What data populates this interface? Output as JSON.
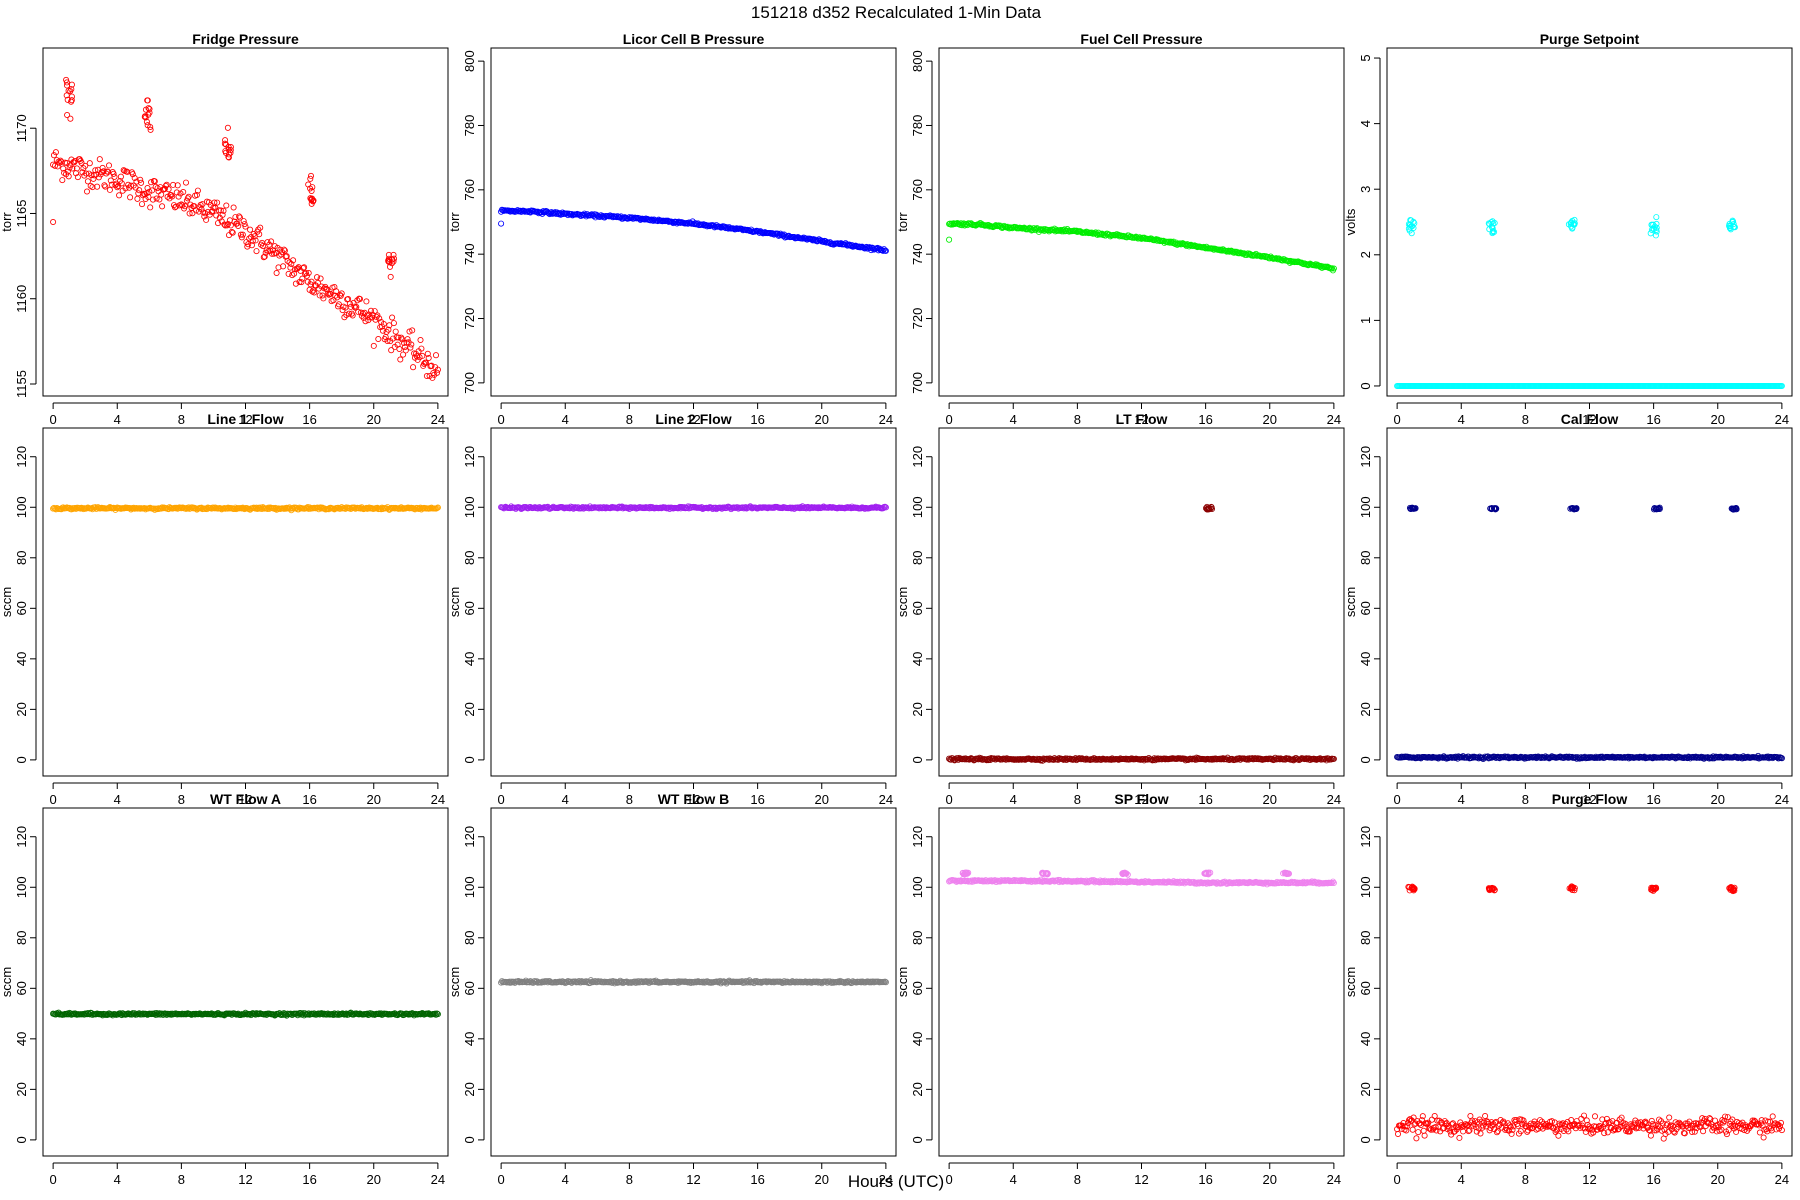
{
  "figure": {
    "title": "151218   d352   Recalculated 1-Min Data",
    "xlabel": "Hours (UTC)"
  },
  "chart_data": [
    {
      "type": "scatter",
      "title": "Fridge Pressure",
      "ylabel": "torr",
      "color": "#ff0000",
      "xlim": [
        0,
        24
      ],
      "xticks": [
        0,
        4,
        8,
        12,
        16,
        20,
        24
      ],
      "ylim": [
        1154.5,
        1174.5
      ],
      "yticks": [
        1155,
        1160,
        1165,
        1170
      ],
      "series": [
        {
          "mode": "curve",
          "x": [
            0,
            1,
            2,
            4,
            6,
            8,
            10,
            12,
            14,
            16,
            18,
            20,
            22,
            24
          ],
          "y": [
            1168.0,
            1167.8,
            1167.5,
            1167.0,
            1166.3,
            1165.8,
            1165.0,
            1164.0,
            1162.5,
            1161.0,
            1160.0,
            1158.8,
            1157.2,
            1155.8
          ],
          "noise": 0.45
        },
        {
          "mode": "cluster",
          "x": 1.0,
          "y": 1172.2,
          "spread": 0.7
        },
        {
          "mode": "cluster",
          "x": 5.9,
          "y": 1170.8,
          "spread": 0.5
        },
        {
          "mode": "cluster",
          "x": 10.9,
          "y": 1169.0,
          "spread": 0.5
        },
        {
          "mode": "cluster",
          "x": 16.1,
          "y": 1166.2,
          "spread": 0.5
        },
        {
          "mode": "cluster",
          "x": 21.1,
          "y": 1162.3,
          "spread": 0.3
        },
        {
          "mode": "points",
          "x": [
            0.0
          ],
          "y": [
            1164.5
          ]
        }
      ]
    },
    {
      "type": "scatter",
      "title": "Licor Cell B Pressure",
      "ylabel": "torr",
      "color": "#0000ff",
      "xlim": [
        0,
        24
      ],
      "xticks": [
        0,
        4,
        8,
        12,
        16,
        20,
        24
      ],
      "ylim": [
        697,
        803
      ],
      "yticks": [
        700,
        720,
        740,
        760,
        780,
        800
      ],
      "series": [
        {
          "mode": "curve",
          "x": [
            0,
            2,
            4,
            8,
            12,
            16,
            20,
            24
          ],
          "y": [
            753.5,
            753.3,
            752.5,
            751.3,
            749.5,
            747.0,
            744.0,
            741.2
          ],
          "noise": 0.2
        },
        {
          "mode": "points",
          "x": [
            0.0
          ],
          "y": [
            749.5
          ]
        }
      ]
    },
    {
      "type": "scatter",
      "title": "Fuel Cell Pressure",
      "ylabel": "torr",
      "color": "#00ee00",
      "xlim": [
        0,
        24
      ],
      "xticks": [
        0,
        4,
        8,
        12,
        16,
        20,
        24
      ],
      "ylim": [
        697,
        803
      ],
      "yticks": [
        700,
        720,
        740,
        760,
        780,
        800
      ],
      "series": [
        {
          "mode": "curve",
          "x": [
            0,
            2,
            4,
            8,
            12,
            16,
            20,
            24
          ],
          "y": [
            749.5,
            749.2,
            748.2,
            747.0,
            745.0,
            742.0,
            739.0,
            735.5
          ],
          "noise": 0.2
        },
        {
          "mode": "points",
          "x": [
            0.0
          ],
          "y": [
            744.5
          ]
        }
      ]
    },
    {
      "type": "scatter",
      "title": "Purge Setpoint",
      "ylabel": "volts",
      "color": "#00ffff",
      "xlim": [
        0,
        24
      ],
      "xticks": [
        0,
        4,
        8,
        12,
        16,
        20,
        24
      ],
      "ylim": [
        -0.1,
        5.1
      ],
      "yticks": [
        0,
        1,
        2,
        3,
        4,
        5
      ],
      "series": [
        {
          "mode": "curve",
          "x": [
            0,
            24
          ],
          "y": [
            0,
            0
          ],
          "noise": 0.0
        },
        {
          "mode": "cluster",
          "x": 0.9,
          "y": 2.45,
          "spread": 0.05
        },
        {
          "mode": "cluster",
          "x": 5.9,
          "y": 2.42,
          "spread": 0.07
        },
        {
          "mode": "cluster",
          "x": 10.9,
          "y": 2.45,
          "spread": 0.04
        },
        {
          "mode": "cluster",
          "x": 16.0,
          "y": 2.42,
          "spread": 0.07
        },
        {
          "mode": "cluster",
          "x": 20.9,
          "y": 2.45,
          "spread": 0.04
        }
      ]
    },
    {
      "type": "scatter",
      "title": "Line 1 Flow",
      "ylabel": "sccm",
      "color": "#ffa500",
      "xlim": [
        0,
        24
      ],
      "xticks": [
        0,
        4,
        8,
        12,
        16,
        20,
        24
      ],
      "ylim": [
        -5,
        130
      ],
      "yticks": [
        0,
        20,
        40,
        60,
        80,
        100,
        120
      ],
      "series": [
        {
          "mode": "curve",
          "x": [
            0,
            24
          ],
          "y": [
            99.6,
            99.6
          ],
          "noise": 0.2
        }
      ]
    },
    {
      "type": "scatter",
      "title": "Line 2 Flow",
      "ylabel": "sccm",
      "color": "#a020f0",
      "xlim": [
        0,
        24
      ],
      "xticks": [
        0,
        4,
        8,
        12,
        16,
        20,
        24
      ],
      "ylim": [
        -5,
        130
      ],
      "yticks": [
        0,
        20,
        40,
        60,
        80,
        100,
        120
      ],
      "series": [
        {
          "mode": "curve",
          "x": [
            0,
            24
          ],
          "y": [
            99.8,
            99.8
          ],
          "noise": 0.2
        }
      ]
    },
    {
      "type": "scatter",
      "title": "LT Flow",
      "ylabel": "sccm",
      "color": "#8b0000",
      "xlim": [
        0,
        24
      ],
      "xticks": [
        0,
        4,
        8,
        12,
        16,
        20,
        24
      ],
      "ylim": [
        -5,
        130
      ],
      "yticks": [
        0,
        20,
        40,
        60,
        80,
        100,
        120
      ],
      "series": [
        {
          "mode": "curve",
          "x": [
            0,
            24
          ],
          "y": [
            0.3,
            0.3
          ],
          "noise": 0.2
        },
        {
          "mode": "cluster",
          "x": 16.2,
          "y": 99.5,
          "spread": 0.3
        }
      ]
    },
    {
      "type": "scatter",
      "title": "Cal Flow",
      "ylabel": "sccm",
      "color": "#00008b",
      "xlim": [
        0,
        24
      ],
      "xticks": [
        0,
        4,
        8,
        12,
        16,
        20,
        24
      ],
      "ylim": [
        -5,
        130
      ],
      "yticks": [
        0,
        20,
        40,
        60,
        80,
        100,
        120
      ],
      "series": [
        {
          "mode": "curve",
          "x": [
            0,
            24
          ],
          "y": [
            1.0,
            1.0
          ],
          "noise": 0.2
        },
        {
          "mode": "cluster",
          "x": 1.0,
          "y": 99.5,
          "spread": 0.2
        },
        {
          "mode": "cluster",
          "x": 6.0,
          "y": 99.5,
          "spread": 0.2
        },
        {
          "mode": "cluster",
          "x": 11.0,
          "y": 99.5,
          "spread": 0.2
        },
        {
          "mode": "cluster",
          "x": 16.2,
          "y": 99.5,
          "spread": 0.2
        },
        {
          "mode": "cluster",
          "x": 21.0,
          "y": 99.5,
          "spread": 0.2
        }
      ]
    },
    {
      "type": "scatter",
      "title": "WT Flow A",
      "ylabel": "sccm",
      "color": "#006400",
      "xlim": [
        0,
        24
      ],
      "xticks": [
        0,
        4,
        8,
        12,
        16,
        20,
        24
      ],
      "ylim": [
        -5,
        130
      ],
      "yticks": [
        0,
        20,
        40,
        60,
        80,
        100,
        120
      ],
      "series": [
        {
          "mode": "curve",
          "x": [
            0,
            24
          ],
          "y": [
            49.8,
            49.8
          ],
          "noise": 0.2
        }
      ]
    },
    {
      "type": "scatter",
      "title": "WT Flow B",
      "ylabel": "sccm",
      "color": "#808080",
      "xlim": [
        0,
        24
      ],
      "xticks": [
        0,
        4,
        8,
        12,
        16,
        20,
        24
      ],
      "ylim": [
        -5,
        130
      ],
      "yticks": [
        0,
        20,
        40,
        60,
        80,
        100,
        120
      ],
      "series": [
        {
          "mode": "curve",
          "x": [
            0,
            24
          ],
          "y": [
            62.5,
            62.5
          ],
          "noise": 0.2
        }
      ]
    },
    {
      "type": "scatter",
      "title": "SP Flow",
      "ylabel": "sccm",
      "color": "#ee82ee",
      "xlim": [
        0,
        24
      ],
      "xticks": [
        0,
        4,
        8,
        12,
        16,
        20,
        24
      ],
      "ylim": [
        -5,
        130
      ],
      "yticks": [
        0,
        20,
        40,
        60,
        80,
        100,
        120
      ],
      "series": [
        {
          "mode": "curve",
          "x": [
            0,
            6,
            11,
            16,
            24
          ],
          "y": [
            102.5,
            102.5,
            102.2,
            101.8,
            101.8
          ],
          "noise": 0.2
        },
        {
          "mode": "cluster",
          "x": 1.0,
          "y": 105.5,
          "spread": 0.2
        },
        {
          "mode": "cluster",
          "x": 6.0,
          "y": 105.5,
          "spread": 0.2
        },
        {
          "mode": "cluster",
          "x": 11.0,
          "y": 105.5,
          "spread": 0.2
        },
        {
          "mode": "cluster",
          "x": 16.1,
          "y": 105.5,
          "spread": 0.2
        },
        {
          "mode": "cluster",
          "x": 21.0,
          "y": 105.5,
          "spread": 0.2
        }
      ]
    },
    {
      "type": "scatter",
      "title": "Purge Flow",
      "ylabel": "sccm",
      "color": "#ff0000",
      "xlim": [
        0,
        24
      ],
      "xticks": [
        0,
        4,
        8,
        12,
        16,
        20,
        24
      ],
      "ylim": [
        -5,
        130
      ],
      "yticks": [
        0,
        20,
        40,
        60,
        80,
        100,
        120
      ],
      "series": [
        {
          "mode": "curve",
          "x": [
            0,
            24
          ],
          "y": [
            5.5,
            5.5
          ],
          "noise": 1.6
        },
        {
          "mode": "cluster",
          "x": 0.9,
          "y": 99.5,
          "spread": 0.4
        },
        {
          "mode": "cluster",
          "x": 5.9,
          "y": 99.5,
          "spread": 0.4
        },
        {
          "mode": "cluster",
          "x": 10.9,
          "y": 99.5,
          "spread": 0.4
        },
        {
          "mode": "cluster",
          "x": 16.0,
          "y": 99.5,
          "spread": 0.4
        },
        {
          "mode": "cluster",
          "x": 20.9,
          "y": 99.5,
          "spread": 0.4
        }
      ]
    }
  ]
}
